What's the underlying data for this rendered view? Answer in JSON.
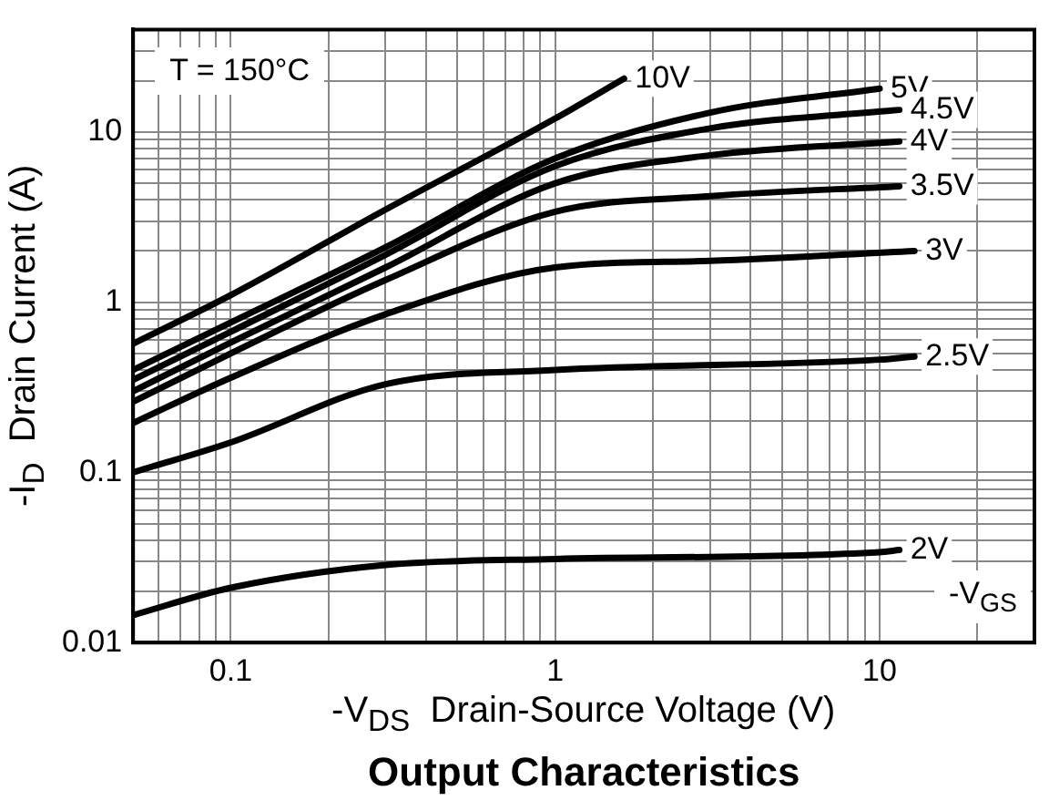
{
  "chart_data": {
    "type": "line",
    "title": "Output Characteristics",
    "xlabel": "-V$_{DS}$  Drain-Source Voltage (V)",
    "ylabel": "-I$_{D}$  Drain Current (A)",
    "annotations": [
      "T = 150°C",
      "-V$_{GS}$"
    ],
    "log": "xy",
    "grid": true,
    "legend": false,
    "marker": "none",
    "line_style": "solid",
    "xlim": [
      0.05,
      30
    ],
    "ylim": [
      0.01,
      40
    ],
    "xticks": [
      {
        "value": 0.05,
        "label": null
      },
      {
        "value": 0.06,
        "label": null
      },
      {
        "value": 0.07,
        "label": null
      },
      {
        "value": 0.08,
        "label": null
      },
      {
        "value": 0.09,
        "label": null
      },
      0.1,
      {
        "value": 0.2,
        "label": null
      },
      {
        "value": 0.3,
        "label": null
      },
      {
        "value": 0.4,
        "label": null
      },
      {
        "value": 0.5,
        "label": null
      },
      {
        "value": 0.6,
        "label": null
      },
      {
        "value": 0.7,
        "label": null
      },
      {
        "value": 0.8,
        "label": null
      },
      {
        "value": 0.9,
        "label": null
      },
      1,
      {
        "value": 2,
        "label": null
      },
      {
        "value": 3,
        "label": null
      },
      {
        "value": 4,
        "label": null
      },
      {
        "value": 5,
        "label": null
      },
      {
        "value": 6,
        "label": null
      },
      {
        "value": 7,
        "label": null
      },
      {
        "value": 8,
        "label": null
      },
      {
        "value": 9,
        "label": null
      },
      10,
      {
        "value": 20,
        "label": null
      },
      {
        "value": 30,
        "label": null
      }
    ],
    "yticks": [
      0.01,
      {
        "value": 0.02,
        "label": null
      },
      {
        "value": 0.03,
        "label": null
      },
      {
        "value": 0.04,
        "label": null
      },
      {
        "value": 0.05,
        "label": null
      },
      {
        "value": 0.06,
        "label": null
      },
      {
        "value": 0.07,
        "label": null
      },
      {
        "value": 0.08,
        "label": null
      },
      {
        "value": 0.09,
        "label": null
      },
      0.1,
      {
        "value": 0.2,
        "label": null
      },
      {
        "value": 0.3,
        "label": null
      },
      {
        "value": 0.4,
        "label": null
      },
      {
        "value": 0.5,
        "label": null
      },
      {
        "value": 0.6,
        "label": null
      },
      {
        "value": 0.7,
        "label": null
      },
      {
        "value": 0.8,
        "label": null
      },
      {
        "value": 0.9,
        "label": null
      },
      1,
      {
        "value": 2,
        "label": null
      },
      {
        "value": 3,
        "label": null
      },
      {
        "value": 4,
        "label": null
      },
      {
        "value": 5,
        "label": null
      },
      {
        "value": 6,
        "label": null
      },
      {
        "value": 7,
        "label": null
      },
      {
        "value": 8,
        "label": null
      },
      {
        "value": 9,
        "label": null
      },
      10,
      {
        "value": 20,
        "label": null
      },
      {
        "value": 30,
        "label": null
      },
      {
        "value": 40,
        "label": null
      }
    ],
    "series": [
      {
        "name": "10V",
        "color": "#000000",
        "x": [
          0.05,
          0.1,
          0.3,
          1,
          1.63
        ],
        "values": [
          0.57,
          1.1,
          3.5,
          12,
          20.6
        ]
      },
      {
        "name": "5V",
        "color": "#000000",
        "x": [
          0.05,
          0.1,
          0.3,
          1,
          3,
          10
        ],
        "values": [
          0.4,
          0.76,
          2.1,
          7,
          13,
          18
        ]
      },
      {
        "name": "4.5V",
        "color": "#000000",
        "x": [
          0.05,
          0.1,
          0.3,
          1,
          3,
          11.5
        ],
        "values": [
          0.35,
          0.67,
          1.9,
          6.3,
          10.5,
          13.5
        ]
      },
      {
        "name": "4V",
        "color": "#000000",
        "x": [
          0.05,
          0.1,
          0.3,
          1,
          3,
          11.5
        ],
        "values": [
          0.3,
          0.58,
          1.6,
          5,
          7.3,
          8.8
        ]
      },
      {
        "name": "3.5V",
        "color": "#000000",
        "x": [
          0.05,
          0.1,
          0.3,
          1,
          3,
          11.5
        ],
        "values": [
          0.26,
          0.5,
          1.35,
          3.4,
          4.2,
          4.8
        ]
      },
      {
        "name": "3V",
        "color": "#000000",
        "x": [
          0.05,
          0.1,
          0.3,
          1,
          3,
          12.8
        ],
        "values": [
          0.195,
          0.36,
          0.85,
          1.6,
          1.75,
          2
        ]
      },
      {
        "name": "2.5V",
        "color": "#000000",
        "x": [
          0.05,
          0.1,
          0.3,
          1,
          10,
          12.8
        ],
        "values": [
          0.1,
          0.15,
          0.33,
          0.4,
          0.46,
          0.48
        ]
      },
      {
        "name": "2V",
        "color": "#000000",
        "x": [
          0.05,
          0.1,
          0.3,
          1,
          10,
          11.5
        ],
        "values": [
          0.0145,
          0.021,
          0.0286,
          0.031,
          0.034,
          0.035
        ]
      }
    ]
  }
}
